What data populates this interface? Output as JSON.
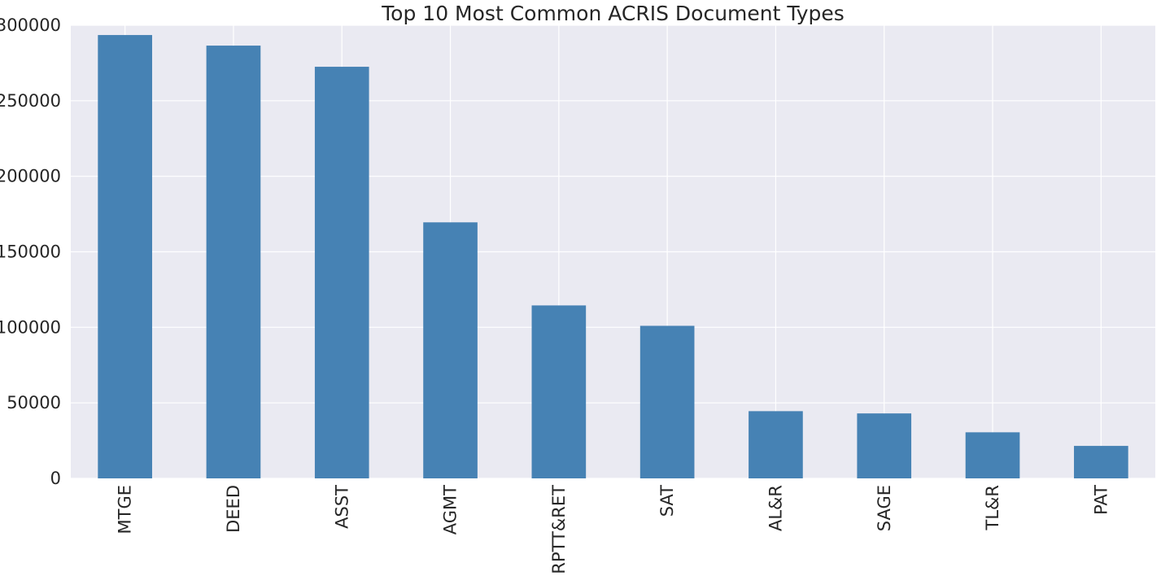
{
  "chart_data": {
    "type": "bar",
    "title": "Top 10 Most Common ACRIS Document Types",
    "xlabel": "",
    "ylabel": "",
    "categories": [
      "MTGE",
      "DEED",
      "ASST",
      "AGMT",
      "RPTT&RET",
      "SAT",
      "AL&R",
      "SAGE",
      "TL&R",
      "PAT"
    ],
    "values": [
      293500,
      286500,
      272500,
      169500,
      114500,
      101000,
      44500,
      43000,
      30500,
      21500
    ],
    "ylim": [
      0,
      300000
    ],
    "yticks": [
      "0",
      "50000",
      "100000",
      "150000",
      "200000",
      "250000",
      "300000"
    ],
    "ytick_values": [
      0,
      50000,
      100000,
      150000,
      200000,
      250000,
      300000
    ],
    "grid": true,
    "legend": "none",
    "colors": {
      "bar": "#4682b4",
      "plot_background": "#eaeaf2",
      "grid": "#ffffff",
      "text": "#262626"
    }
  }
}
